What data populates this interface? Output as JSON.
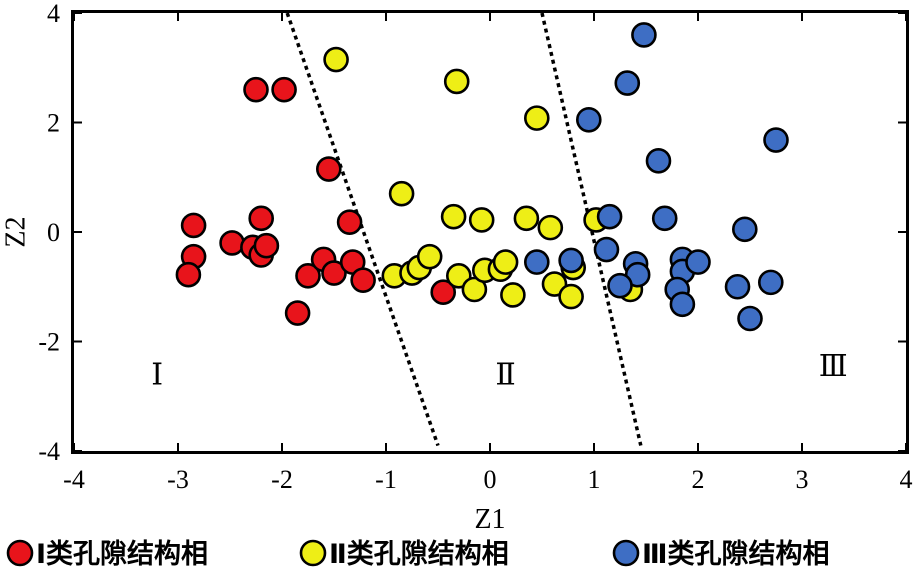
{
  "chart_data": {
    "type": "scatter",
    "xlabel": "Z1",
    "ylabel": "Z2",
    "xlim": [
      -4,
      4
    ],
    "ylim": [
      -4,
      4
    ],
    "xticks": [
      "-4",
      "-3",
      "-2",
      "-1",
      "0",
      "1",
      "2",
      "3",
      "4"
    ],
    "yticks": [
      "4",
      "2",
      "0",
      "-2",
      "-4"
    ],
    "grid": false,
    "legend_position": "bottom",
    "regions": [
      {
        "label": "Ⅰ",
        "x": -3.2,
        "y": -2.6
      },
      {
        "label": "Ⅱ",
        "x": 0.15,
        "y": -2.6
      },
      {
        "label": "Ⅲ",
        "x": 3.3,
        "y": -2.45
      }
    ],
    "divider_lines": [
      {
        "x1": -1.95,
        "y1": 4.0,
        "x2": -0.5,
        "y2": -3.9
      },
      {
        "x1": 0.5,
        "y1": 4.0,
        "x2": 1.45,
        "y2": -3.9
      }
    ],
    "series": [
      {
        "name": "Ⅰ类孔隙结构相",
        "color": "#e8141b",
        "points": [
          [
            -2.25,
            2.6
          ],
          [
            -1.98,
            2.6
          ],
          [
            -1.55,
            1.15
          ],
          [
            -1.35,
            0.18
          ],
          [
            -2.85,
            0.12
          ],
          [
            -2.2,
            0.25
          ],
          [
            -2.48,
            -0.2
          ],
          [
            -2.28,
            -0.28
          ],
          [
            -2.2,
            -0.42
          ],
          [
            -2.15,
            -0.25
          ],
          [
            -2.85,
            -0.45
          ],
          [
            -2.9,
            -0.78
          ],
          [
            -1.75,
            -0.8
          ],
          [
            -1.6,
            -0.5
          ],
          [
            -1.5,
            -0.75
          ],
          [
            -1.32,
            -0.55
          ],
          [
            -1.22,
            -0.88
          ],
          [
            -1.85,
            -1.48
          ],
          [
            -0.45,
            -1.1
          ]
        ]
      },
      {
        "name": "Ⅱ类孔隙结构相",
        "color": "#eeee16",
        "points": [
          [
            -1.48,
            3.15
          ],
          [
            -0.32,
            2.75
          ],
          [
            0.45,
            2.08
          ],
          [
            -0.85,
            0.7
          ],
          [
            -0.35,
            0.28
          ],
          [
            -0.08,
            0.22
          ],
          [
            0.35,
            0.25
          ],
          [
            0.58,
            0.08
          ],
          [
            1.02,
            0.22
          ],
          [
            -0.92,
            -0.8
          ],
          [
            -0.75,
            -0.75
          ],
          [
            -0.68,
            -0.65
          ],
          [
            -0.58,
            -0.45
          ],
          [
            -0.3,
            -0.8
          ],
          [
            -0.15,
            -1.05
          ],
          [
            -0.05,
            -0.7
          ],
          [
            0.1,
            -0.68
          ],
          [
            0.15,
            -0.55
          ],
          [
            0.22,
            -1.15
          ],
          [
            0.62,
            -0.95
          ],
          [
            0.78,
            -1.18
          ],
          [
            0.8,
            -0.65
          ],
          [
            1.35,
            -1.05
          ]
        ]
      },
      {
        "name": "Ⅲ类孔隙结构相",
        "color": "#3e6ec4",
        "points": [
          [
            1.48,
            3.6
          ],
          [
            1.32,
            2.72
          ],
          [
            0.95,
            2.05
          ],
          [
            2.75,
            1.68
          ],
          [
            1.62,
            1.3
          ],
          [
            1.68,
            0.25
          ],
          [
            1.15,
            0.28
          ],
          [
            2.45,
            0.05
          ],
          [
            0.45,
            -0.55
          ],
          [
            0.78,
            -0.52
          ],
          [
            1.12,
            -0.32
          ],
          [
            1.4,
            -0.58
          ],
          [
            1.42,
            -0.78
          ],
          [
            1.25,
            -0.98
          ],
          [
            1.85,
            -0.5
          ],
          [
            1.85,
            -0.72
          ],
          [
            2.0,
            -0.55
          ],
          [
            1.8,
            -1.05
          ],
          [
            1.85,
            -1.32
          ],
          [
            2.38,
            -1.0
          ],
          [
            2.7,
            -0.92
          ],
          [
            2.5,
            -1.58
          ]
        ]
      }
    ]
  }
}
